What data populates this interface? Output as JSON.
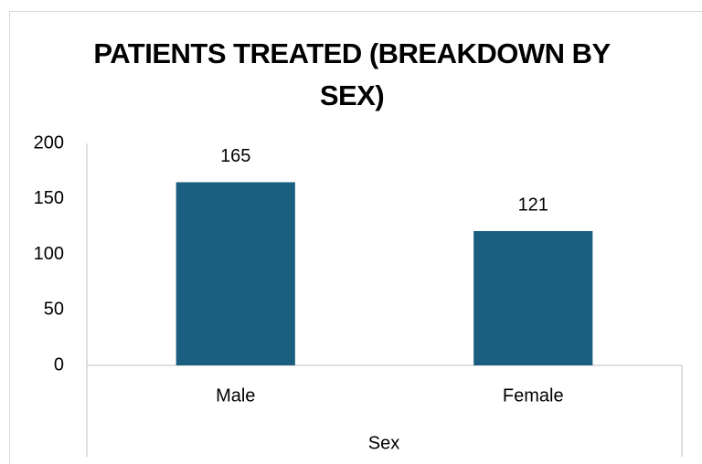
{
  "chart_data": {
    "type": "bar",
    "title": "PATIENTS TREATED (BREAKDOWN BY SEX)",
    "categories": [
      "Male",
      "Female"
    ],
    "values": [
      165,
      121
    ],
    "color": "#1a5f80",
    "x_label": "Sex",
    "ylim": [
      0,
      200
    ],
    "yticks": [
      0,
      50,
      100,
      150,
      200
    ],
    "grid": false
  }
}
